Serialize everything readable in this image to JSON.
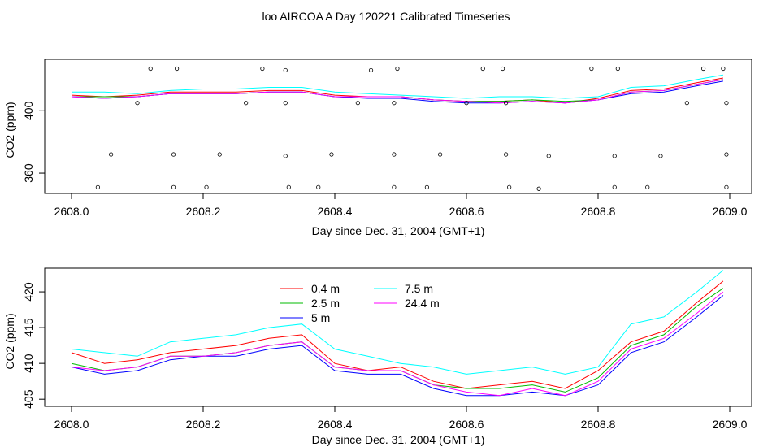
{
  "page": {
    "title": "loo AIRCOA A  Day 120221  Calibrated Timeseries"
  },
  "colors": {
    "0.4 m": "#ff0000",
    "2.5 m": "#00bb00",
    "5 m": "#0000ff",
    "7.5 m": "#00ffff",
    "24.4 m": "#ff00ff",
    "axis": "#000000"
  },
  "chart_data": [
    {
      "type": "line",
      "xlabel": "Day since Dec. 31, 2004 (GMT+1)",
      "ylabel": "CO2 (ppm)",
      "xlim": [
        2608.0,
        2609.0
      ],
      "ylim": [
        347,
        433
      ],
      "xticks": [
        "2608.0",
        "2608.2",
        "2608.4",
        "2608.6",
        "2608.8",
        "2609.0"
      ],
      "yticks": [
        "360",
        "400"
      ],
      "grid": false,
      "x": [
        2608.0,
        2608.05,
        2608.1,
        2608.15,
        2608.2,
        2608.25,
        2608.3,
        2608.35,
        2608.4,
        2608.45,
        2608.5,
        2608.55,
        2608.6,
        2608.65,
        2608.7,
        2608.75,
        2608.8,
        2608.85,
        2608.9,
        2608.95,
        2608.99
      ],
      "series": [
        {
          "name": "0.4 m",
          "values": [
            410,
            409,
            410,
            412,
            412,
            412,
            413,
            413,
            410,
            409,
            409,
            407,
            406,
            406,
            407,
            405,
            408,
            413,
            414,
            418,
            421
          ]
        },
        {
          "name": "2.5 m",
          "values": [
            409,
            409,
            409,
            411,
            411,
            411,
            412,
            412,
            409,
            409,
            409,
            407,
            406,
            406,
            407,
            406,
            407,
            412,
            413,
            417,
            420
          ]
        },
        {
          "name": "5 m",
          "values": [
            409,
            408,
            409,
            411,
            411,
            411,
            412,
            412,
            409,
            408,
            408,
            406,
            405,
            405,
            406,
            405,
            407,
            411,
            412,
            416,
            419
          ]
        },
        {
          "name": "7.5 m",
          "values": [
            412,
            412,
            411,
            413,
            414,
            414,
            415,
            415,
            412,
            411,
            410,
            409,
            408,
            409,
            409,
            408,
            409,
            415,
            416,
            420,
            423
          ]
        },
        {
          "name": "24.4 m",
          "values": [
            409,
            408,
            409,
            411,
            411,
            411,
            412,
            412,
            409,
            409,
            409,
            407,
            406,
            405,
            406,
            405,
            407,
            412,
            413,
            417,
            420
          ]
        }
      ],
      "scatter_points": {
        "x": [
          2608.12,
          2608.16,
          2608.29,
          2608.325,
          2608.455,
          2608.495,
          2608.625,
          2608.655,
          2608.79,
          2608.83,
          2608.96,
          2608.99,
          2608.06,
          2608.155,
          2608.225,
          2608.325,
          2608.395,
          2608.49,
          2608.56,
          2608.66,
          2608.725,
          2608.825,
          2608.895,
          2608.995,
          2608.04,
          2608.155,
          2608.205,
          2608.33,
          2608.375,
          2608.49,
          2608.54,
          2608.665,
          2608.71,
          2608.825,
          2608.875,
          2608.995,
          2608.1,
          2608.265,
          2608.325,
          2608.435,
          2608.49,
          2608.6,
          2608.66,
          2608.935,
          2608.995
        ],
        "y": [
          427,
          427,
          427,
          426,
          426,
          427,
          427,
          427,
          427,
          427,
          427,
          427,
          372,
          372,
          372,
          371,
          372,
          372,
          372,
          372,
          371,
          371,
          371,
          372,
          351,
          351,
          351,
          351,
          351,
          351,
          351,
          351,
          350,
          351,
          351,
          351,
          405,
          405,
          405,
          405,
          405,
          405,
          405,
          405,
          405
        ]
      }
    },
    {
      "type": "line",
      "xlabel": "Day since Dec. 31, 2004 (GMT+1)",
      "ylabel": "CO2 (ppm)",
      "xlim": [
        2608.0,
        2609.0
      ],
      "ylim": [
        404,
        423.3
      ],
      "xticks": [
        "2608.0",
        "2608.2",
        "2608.4",
        "2608.6",
        "2608.8",
        "2609.0"
      ],
      "yticks": [
        "405",
        "410",
        "415",
        "420"
      ],
      "grid": false,
      "legend": "top-center",
      "x": [
        2608.0,
        2608.05,
        2608.1,
        2608.15,
        2608.2,
        2608.25,
        2608.3,
        2608.35,
        2608.4,
        2608.45,
        2608.5,
        2608.55,
        2608.6,
        2608.65,
        2608.7,
        2608.75,
        2608.8,
        2608.85,
        2608.9,
        2608.95,
        2608.99
      ],
      "series": [
        {
          "name": "0.4 m",
          "values": [
            411.5,
            410.0,
            410.5,
            411.5,
            412.0,
            412.5,
            413.5,
            414.0,
            410.0,
            409.0,
            409.5,
            407.5,
            406.5,
            407.0,
            407.5,
            406.5,
            409.0,
            413.0,
            414.5,
            418.5,
            421.5
          ]
        },
        {
          "name": "2.5 m",
          "values": [
            410.0,
            409.0,
            409.5,
            411.0,
            411.0,
            411.5,
            412.5,
            413.0,
            409.5,
            409.0,
            409.0,
            407.0,
            406.5,
            406.5,
            407.0,
            406.0,
            408.0,
            412.5,
            414.0,
            418.0,
            420.5
          ]
        },
        {
          "name": "5 m",
          "values": [
            409.5,
            408.5,
            409.0,
            410.5,
            411.0,
            411.0,
            412.0,
            412.5,
            409.0,
            408.5,
            408.5,
            406.5,
            405.5,
            405.5,
            406.0,
            405.5,
            407.0,
            411.5,
            413.0,
            416.5,
            419.5
          ]
        },
        {
          "name": "7.5 m",
          "values": [
            412.0,
            411.5,
            411.0,
            413.0,
            413.5,
            414.0,
            415.0,
            415.5,
            412.0,
            411.0,
            410.0,
            409.5,
            408.5,
            409.0,
            409.5,
            408.5,
            409.5,
            415.5,
            416.5,
            420.0,
            423.0
          ]
        },
        {
          "name": "24.4 m",
          "values": [
            409.5,
            409.0,
            409.5,
            411.0,
            411.0,
            411.5,
            412.5,
            413.0,
            409.5,
            409.0,
            409.0,
            407.0,
            406.0,
            405.5,
            406.5,
            405.5,
            407.5,
            412.0,
            413.5,
            417.0,
            420.0
          ]
        }
      ]
    }
  ]
}
